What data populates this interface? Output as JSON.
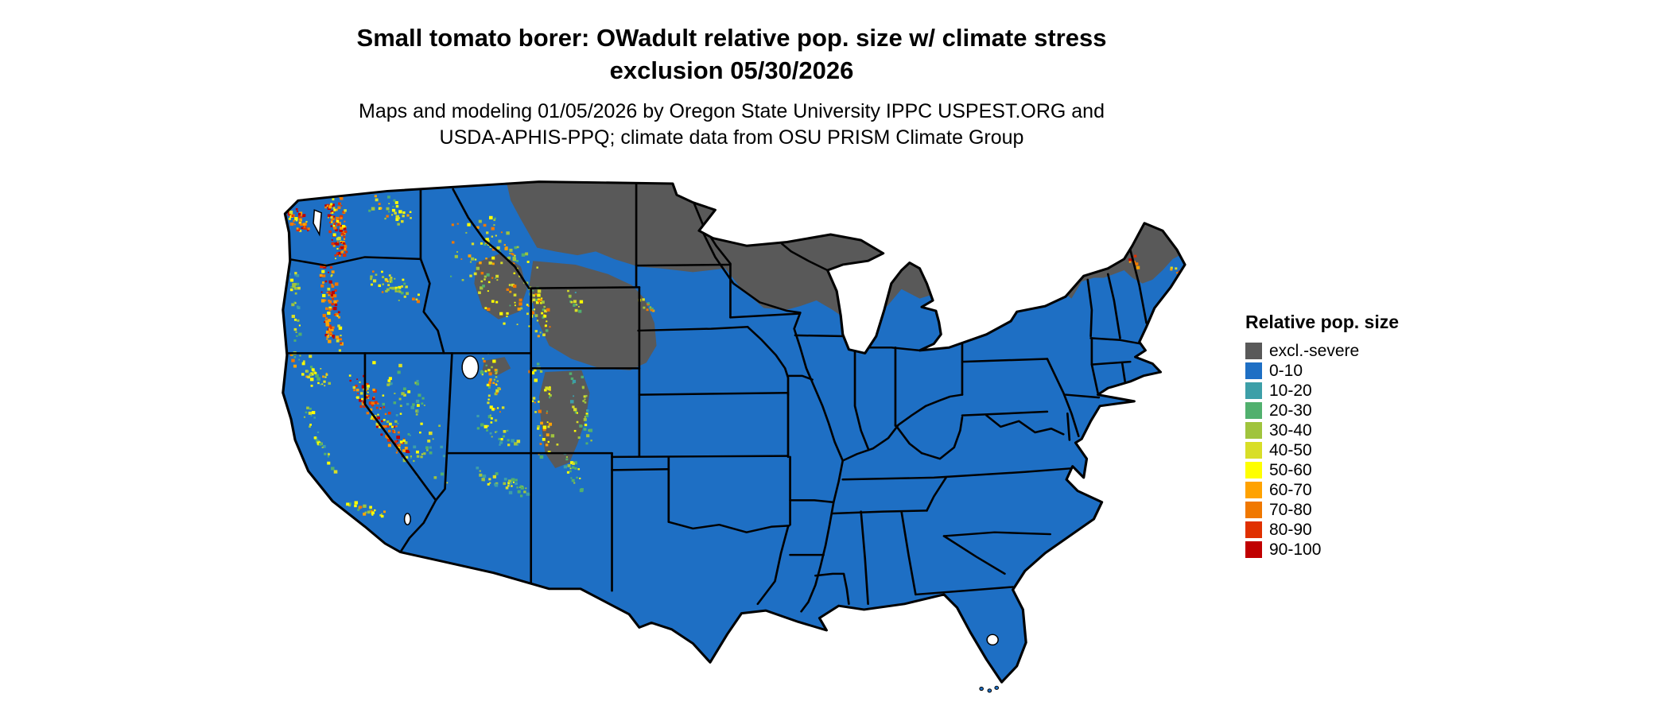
{
  "header": {
    "title_line1": "Small tomato borer: OWadult relative pop. size w/ climate stress",
    "title_line2": "exclusion 05/30/2026",
    "subtitle_line1": "Maps and modeling 01/05/2026 by Oregon State University IPPC USPEST.ORG and",
    "subtitle_line2": "USDA-APHIS-PPQ; climate data from OSU PRISM Climate Group"
  },
  "legend": {
    "title": "Relative pop. size",
    "items": [
      {
        "label": "excl.-severe",
        "color": "#595959"
      },
      {
        "label": "0-10",
        "color": "#1e6fc4"
      },
      {
        "label": "10-20",
        "color": "#3d9fa8"
      },
      {
        "label": "20-30",
        "color": "#51b06e"
      },
      {
        "label": "30-40",
        "color": "#a0c43d"
      },
      {
        "label": "40-50",
        "color": "#d8de27"
      },
      {
        "label": "50-60",
        "color": "#ffff00"
      },
      {
        "label": "60-70",
        "color": "#ffa200"
      },
      {
        "label": "70-80",
        "color": "#f07800"
      },
      {
        "label": "80-90",
        "color": "#e03000"
      },
      {
        "label": "90-100",
        "color": "#c00000"
      }
    ]
  }
}
